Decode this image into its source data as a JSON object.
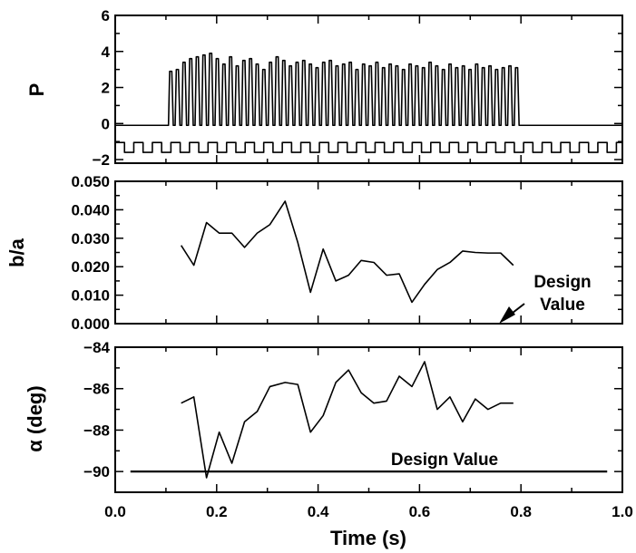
{
  "chart_data": [
    {
      "type": "line",
      "ylabel": "P",
      "ylim": [
        -2.2,
        6
      ],
      "yticks": [
        6,
        4,
        2,
        0,
        -2
      ],
      "xlim": [
        0,
        1
      ],
      "series": [
        {
          "kind": "burst-oscillation",
          "baseline": -0.1,
          "start": 0.105,
          "end": 0.8,
          "cycles": 53,
          "trough": -0.1,
          "peaks": [
            2.9,
            3.0,
            3.4,
            3.6,
            3.7,
            3.8,
            3.9,
            3.6,
            3.3,
            3.7,
            3.2,
            3.5,
            3.6,
            3.3,
            3.0,
            3.4,
            3.7,
            3.5,
            3.2,
            3.4,
            3.5,
            3.3,
            3.1,
            3.4,
            3.5,
            3.2,
            3.3,
            3.4,
            3.0,
            3.3,
            3.2,
            3.4,
            3.1,
            3.3,
            3.2,
            3.0,
            3.3,
            3.2,
            3.1,
            3.4,
            3.2,
            3.0,
            3.3,
            3.1,
            3.2,
            3.0,
            3.3,
            3.1,
            3.2,
            3.0,
            3.1,
            3.2,
            3.1
          ]
        },
        {
          "kind": "square-wave",
          "high": -1.05,
          "low": -1.6,
          "period": 0.0366,
          "start": 0.0
        }
      ]
    },
    {
      "type": "line",
      "ylabel": "b/a",
      "ylim": [
        0,
        0.05
      ],
      "yticks": [
        "0.050",
        "0.040",
        "0.030",
        "0.020",
        "0.010",
        "0.000"
      ],
      "xlim": [
        0,
        1
      ],
      "series": [
        {
          "x": [
            0.13,
            0.155,
            0.18,
            0.205,
            0.23,
            0.255,
            0.28,
            0.305,
            0.335,
            0.36,
            0.385,
            0.41,
            0.435,
            0.46,
            0.485,
            0.51,
            0.535,
            0.56,
            0.585,
            0.61,
            0.635,
            0.66,
            0.685,
            0.71,
            0.735,
            0.76,
            0.785
          ],
          "y": [
            0.0275,
            0.0205,
            0.0355,
            0.0318,
            0.0318,
            0.0268,
            0.0318,
            0.0348,
            0.043,
            0.0285,
            0.011,
            0.0262,
            0.015,
            0.017,
            0.0222,
            0.0215,
            0.017,
            0.0175,
            0.0075,
            0.0138,
            0.019,
            0.0215,
            0.0255,
            0.025,
            0.0248,
            0.0248,
            0.0205
          ]
        }
      ],
      "annotation": {
        "lines": [
          "Design",
          "Value"
        ],
        "arrow_to": [
          0.6,
          0.0
        ]
      }
    },
    {
      "type": "line",
      "ylabel": "α (deg)",
      "ylim": [
        -91,
        -84
      ],
      "yticks": [
        -84,
        -86,
        -88,
        -90
      ],
      "xlim": [
        0,
        1
      ],
      "xticks": [
        "0.0",
        "0.2",
        "0.4",
        "0.6",
        "0.8",
        "1.0"
      ],
      "xlabel": "Time (s)",
      "series": [
        {
          "x": [
            0.13,
            0.155,
            0.18,
            0.205,
            0.23,
            0.255,
            0.28,
            0.305,
            0.335,
            0.36,
            0.385,
            0.41,
            0.435,
            0.46,
            0.485,
            0.51,
            0.535,
            0.56,
            0.585,
            0.61,
            0.635,
            0.66,
            0.685,
            0.71,
            0.735,
            0.76,
            0.785
          ],
          "y": [
            -86.7,
            -86.4,
            -90.3,
            -88.1,
            -89.6,
            -87.6,
            -87.1,
            -85.9,
            -85.7,
            -85.8,
            -88.1,
            -87.3,
            -85.7,
            -85.1,
            -86.2,
            -86.7,
            -86.6,
            -85.4,
            -85.9,
            -84.7,
            -87.0,
            -86.4,
            -87.6,
            -86.5,
            -87.0,
            -86.7,
            -86.7
          ]
        }
      ],
      "design_value": -90,
      "design_range": [
        0.03,
        0.97
      ],
      "annotation": {
        "text": "Design Value"
      }
    }
  ]
}
